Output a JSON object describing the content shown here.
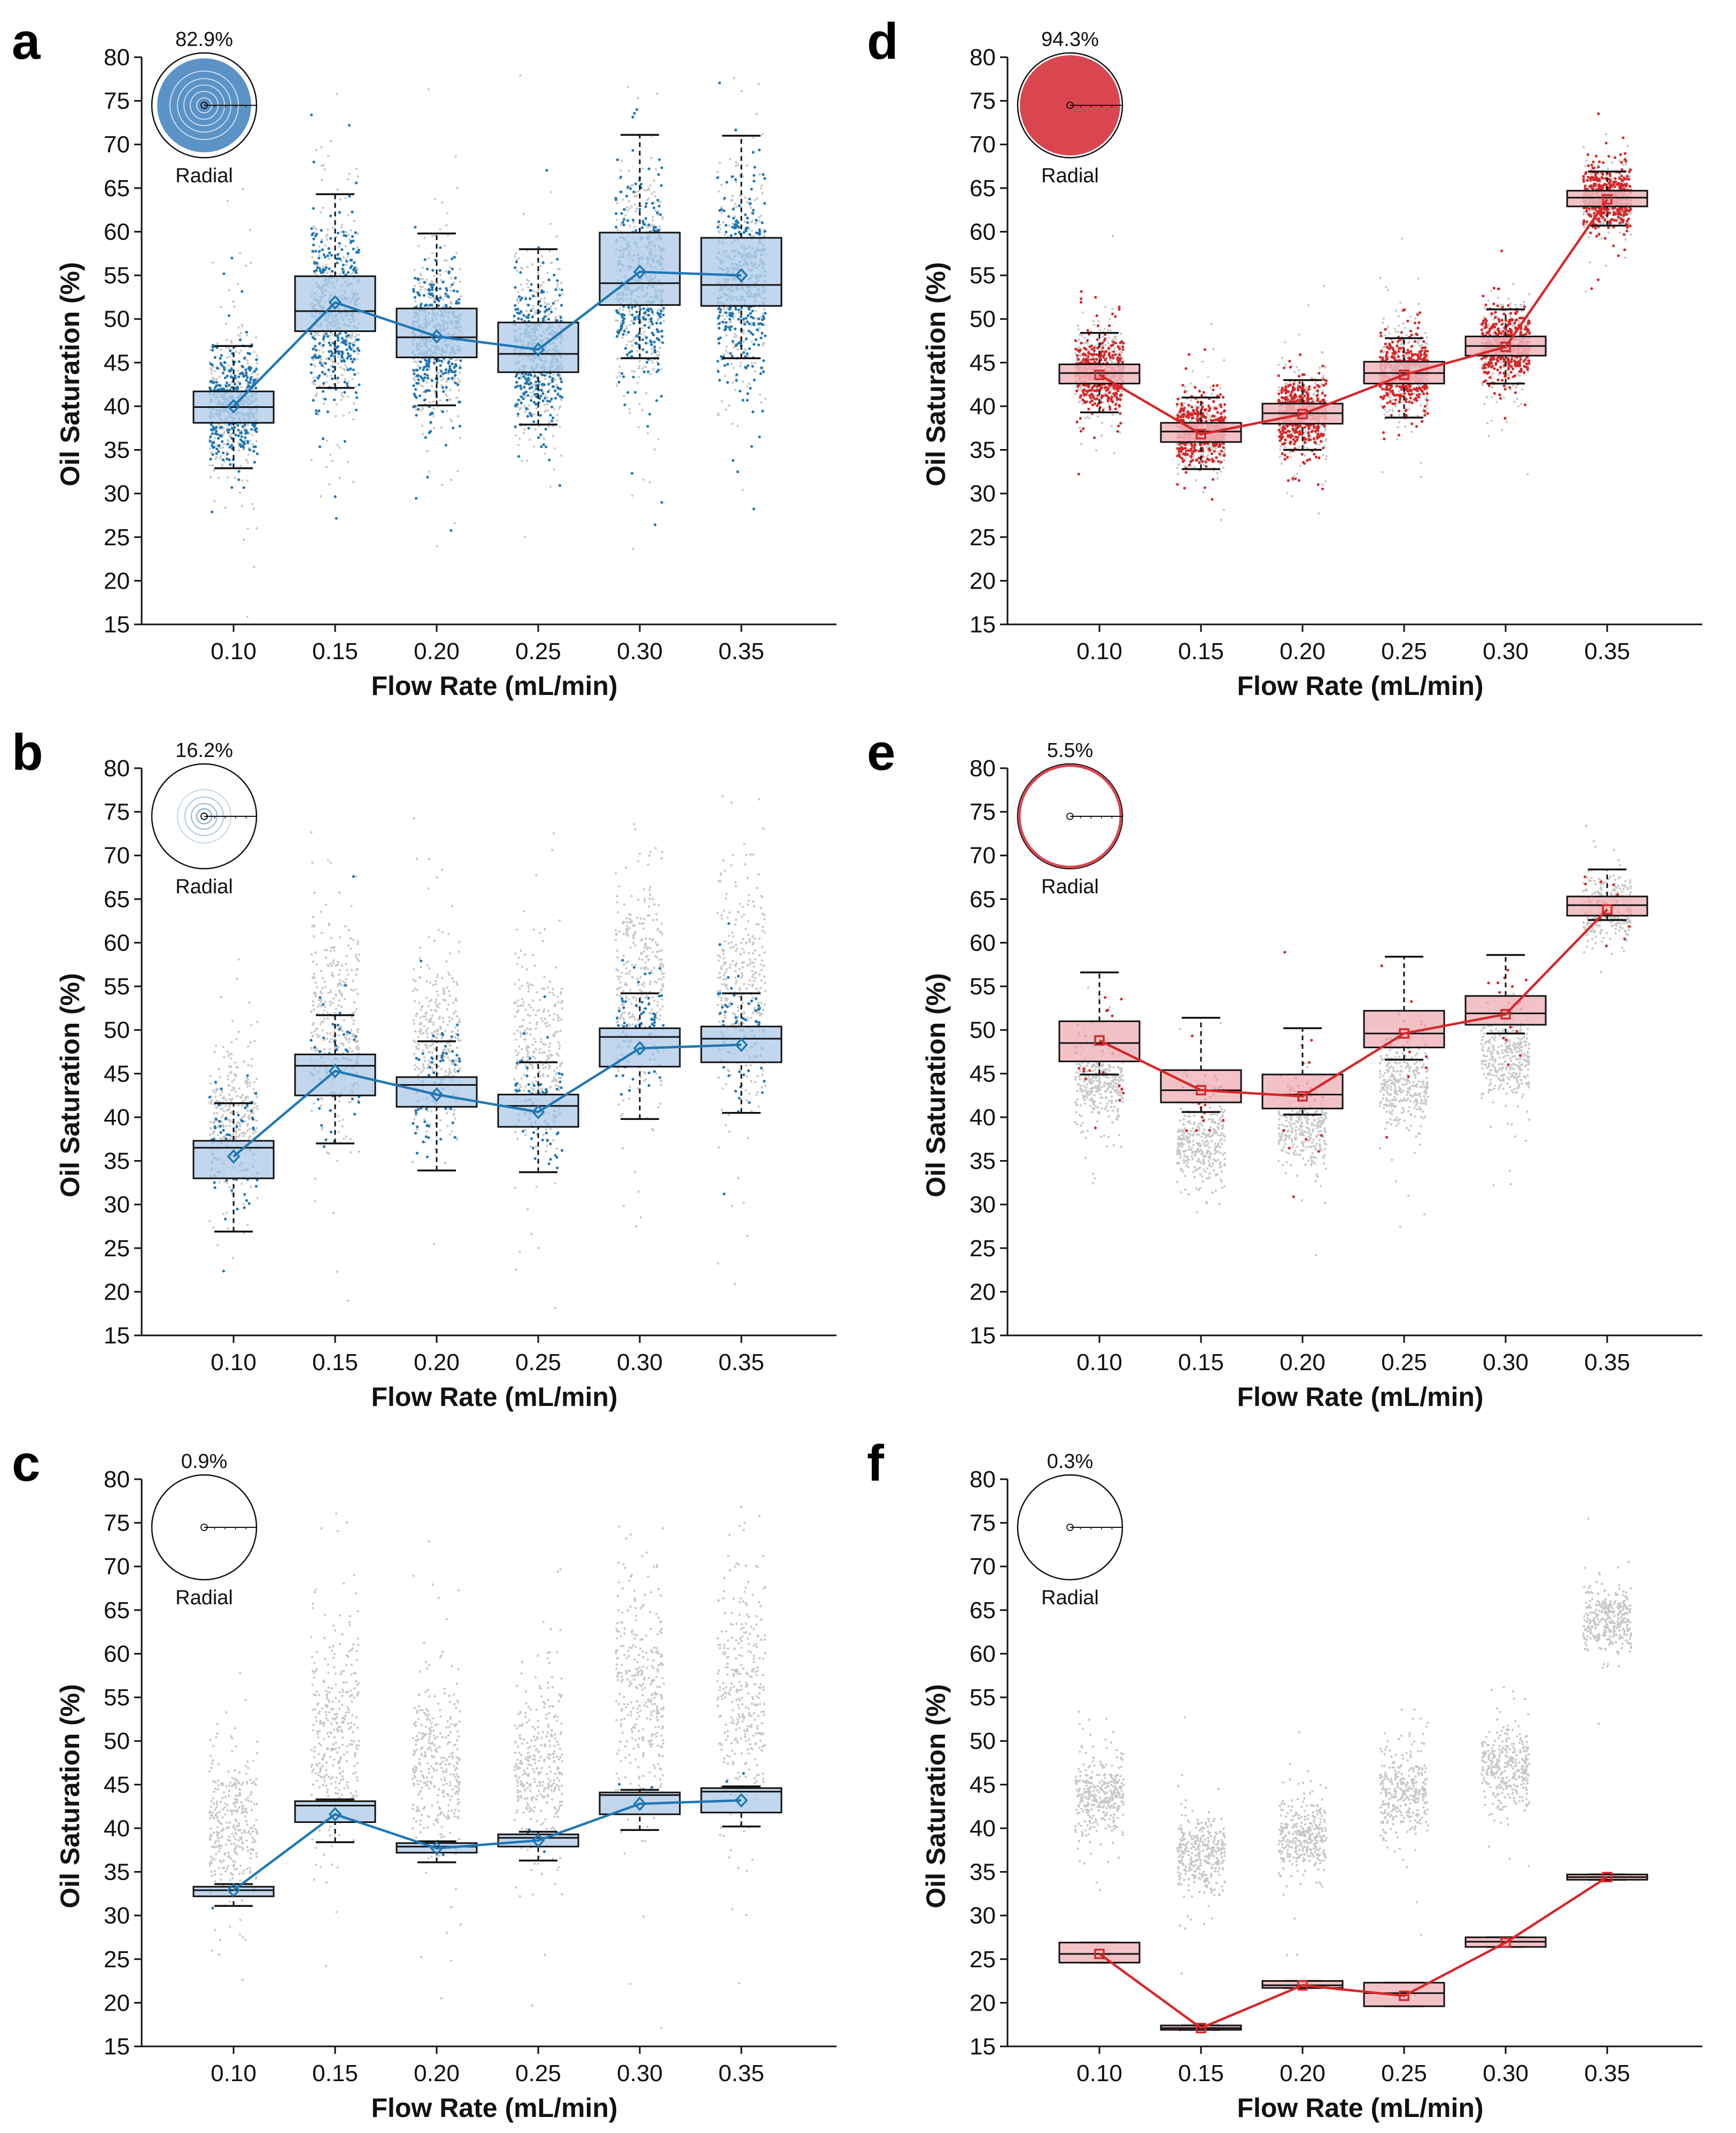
{
  "colors": {
    "blue_fill": "#b7d0ea",
    "blue_line": "#1f77b4",
    "blue_pie": "#5b93c7",
    "red_fill": "#f1b7bd",
    "red_line": "#d62728",
    "red_pie": "#d9464f",
    "gray_points": "#c8c8c8",
    "dark": "#111111"
  },
  "chart_data": [
    {
      "id": "a",
      "panel_label": "a",
      "type": "box",
      "color": "blue",
      "xlabel": "Flow Rate (mL/min)",
      "ylabel": "Oil Saturation (%)",
      "ylim": [
        15,
        80
      ],
      "y_ticks": [
        "15",
        "20",
        "25",
        "30",
        "35",
        "40",
        "45",
        "50",
        "55",
        "60",
        "65",
        "70",
        "75",
        "80"
      ],
      "categories": [
        "0.10",
        "0.15",
        "0.20",
        "0.25",
        "0.30",
        "0.35"
      ],
      "inset": {
        "percent": "82.9%",
        "label": "Radial",
        "fraction": 0.829
      },
      "boxes": [
        {
          "q1": 38.1,
          "median": 39.9,
          "q3": 41.7,
          "wlo": 32.9,
          "whi": 46.9,
          "mean": 40.0,
          "spread": 3.0
        },
        {
          "q1": 48.6,
          "median": 50.9,
          "q3": 54.9,
          "wlo": 42.1,
          "whi": 64.3,
          "mean": 51.9,
          "spread": 4.5
        },
        {
          "q1": 45.6,
          "median": 47.9,
          "q3": 51.2,
          "wlo": 40.1,
          "whi": 59.8,
          "mean": 48.0,
          "spread": 3.5
        },
        {
          "q1": 43.9,
          "median": 46.0,
          "q3": 49.6,
          "wlo": 37.9,
          "whi": 58.0,
          "mean": 46.5,
          "spread": 3.5
        },
        {
          "q1": 51.6,
          "median": 54.1,
          "q3": 59.9,
          "wlo": 45.5,
          "whi": 71.1,
          "mean": 55.4,
          "spread": 5.0
        },
        {
          "q1": 51.5,
          "median": 53.9,
          "q3": 59.3,
          "wlo": 45.5,
          "whi": 71.0,
          "mean": 55.0,
          "spread": 5.0
        }
      ]
    },
    {
      "id": "b",
      "panel_label": "b",
      "type": "box",
      "color": "blue",
      "xlabel": "Flow Rate (mL/min)",
      "ylabel": "Oil Saturation (%)",
      "ylim": [
        15,
        80
      ],
      "y_ticks": [
        "15",
        "20",
        "25",
        "30",
        "35",
        "40",
        "45",
        "50",
        "55",
        "60",
        "65",
        "70",
        "75",
        "80"
      ],
      "categories": [
        "0.10",
        "0.15",
        "0.20",
        "0.25",
        "0.30",
        "0.35"
      ],
      "inset": {
        "percent": "16.2%",
        "label": "Radial",
        "fraction": 0.162
      },
      "boxes": [
        {
          "q1": 33.0,
          "median": 36.5,
          "q3": 37.3,
          "wlo": 26.9,
          "whi": 41.6,
          "mean": 35.5,
          "spread": 3.5
        },
        {
          "q1": 42.5,
          "median": 45.9,
          "q3": 47.2,
          "wlo": 37.0,
          "whi": 51.7,
          "mean": 45.3,
          "spread": 3.5
        },
        {
          "q1": 41.2,
          "median": 43.7,
          "q3": 44.6,
          "wlo": 33.9,
          "whi": 48.7,
          "mean": 42.6,
          "spread": 3.5
        },
        {
          "q1": 38.9,
          "median": 41.3,
          "q3": 42.6,
          "wlo": 33.7,
          "whi": 46.3,
          "mean": 40.6,
          "spread": 3.0
        },
        {
          "q1": 45.8,
          "median": 49.2,
          "q3": 50.2,
          "wlo": 39.8,
          "whi": 54.2,
          "mean": 47.9,
          "spread": 3.5
        },
        {
          "q1": 46.3,
          "median": 49.0,
          "q3": 50.4,
          "wlo": 40.5,
          "whi": 54.2,
          "mean": 48.3,
          "spread": 3.5
        }
      ]
    },
    {
      "id": "c",
      "panel_label": "c",
      "type": "box",
      "color": "blue",
      "xlabel": "Flow Rate (mL/min)",
      "ylabel": "Oil Saturation (%)",
      "ylim": [
        15,
        80
      ],
      "y_ticks": [
        "15",
        "20",
        "25",
        "30",
        "35",
        "40",
        "45",
        "50",
        "55",
        "60",
        "65",
        "70",
        "75",
        "80"
      ],
      "categories": [
        "0.10",
        "0.15",
        "0.20",
        "0.25",
        "0.30",
        "0.35"
      ],
      "inset": {
        "percent": "0.9%",
        "label": "Radial",
        "fraction": 0.009
      },
      "boxes": [
        {
          "q1": 32.2,
          "median": 32.9,
          "q3": 33.3,
          "wlo": 31.1,
          "whi": 33.6,
          "mean": 32.9,
          "spread": 0.5
        },
        {
          "q1": 40.7,
          "median": 42.6,
          "q3": 43.1,
          "wlo": 38.4,
          "whi": 43.3,
          "mean": 41.6,
          "spread": 1.0
        },
        {
          "q1": 37.2,
          "median": 37.9,
          "q3": 38.3,
          "wlo": 36.1,
          "whi": 38.5,
          "mean": 37.7,
          "spread": 0.5
        },
        {
          "q1": 37.9,
          "median": 38.9,
          "q3": 39.3,
          "wlo": 36.3,
          "whi": 39.6,
          "mean": 38.6,
          "spread": 0.6
        },
        {
          "q1": 41.6,
          "median": 43.8,
          "q3": 44.1,
          "wlo": 39.8,
          "whi": 44.4,
          "mean": 42.8,
          "spread": 1.0
        },
        {
          "q1": 41.8,
          "median": 44.2,
          "q3": 44.6,
          "wlo": 40.2,
          "whi": 44.8,
          "mean": 43.2,
          "spread": 1.0
        }
      ]
    },
    {
      "id": "d",
      "panel_label": "d",
      "type": "box",
      "color": "red",
      "xlabel": "Flow Rate (mL/min)",
      "ylabel": "Oil Saturation (%)",
      "ylim": [
        15,
        80
      ],
      "y_ticks": [
        "15",
        "20",
        "25",
        "30",
        "35",
        "40",
        "45",
        "50",
        "55",
        "60",
        "65",
        "70",
        "75",
        "80"
      ],
      "categories": [
        "0.10",
        "0.15",
        "0.20",
        "0.25",
        "0.30",
        "0.35"
      ],
      "inset": {
        "percent": "94.3%",
        "label": "Radial",
        "fraction": 0.943
      },
      "boxes": [
        {
          "q1": 42.6,
          "median": 43.8,
          "q3": 44.8,
          "wlo": 39.3,
          "whi": 48.4,
          "mean": 43.6,
          "spread": 1.8
        },
        {
          "q1": 35.9,
          "median": 37.1,
          "q3": 38.1,
          "wlo": 32.8,
          "whi": 41.0,
          "mean": 36.8,
          "spread": 1.8
        },
        {
          "q1": 38.0,
          "median": 39.2,
          "q3": 40.3,
          "wlo": 35.0,
          "whi": 43.0,
          "mean": 39.1,
          "spread": 1.8
        },
        {
          "q1": 42.6,
          "median": 43.8,
          "q3": 45.1,
          "wlo": 38.7,
          "whi": 47.8,
          "mean": 43.6,
          "spread": 2.0
        },
        {
          "q1": 45.8,
          "median": 46.9,
          "q3": 48.0,
          "wlo": 42.6,
          "whi": 51.1,
          "mean": 46.8,
          "spread": 1.8
        },
        {
          "q1": 62.9,
          "median": 63.9,
          "q3": 64.7,
          "wlo": 60.7,
          "whi": 66.9,
          "mean": 63.7,
          "spread": 1.6
        }
      ]
    },
    {
      "id": "e",
      "panel_label": "e",
      "type": "box",
      "color": "red",
      "xlabel": "Flow Rate (mL/min)",
      "ylabel": "Oil Saturation (%)",
      "ylim": [
        15,
        80
      ],
      "y_ticks": [
        "15",
        "20",
        "25",
        "30",
        "35",
        "40",
        "45",
        "50",
        "55",
        "60",
        "65",
        "70",
        "75",
        "80"
      ],
      "categories": [
        "0.10",
        "0.15",
        "0.20",
        "0.25",
        "0.30",
        "0.35"
      ],
      "inset": {
        "percent": "5.5%",
        "label": "Radial",
        "fraction": 0.055
      },
      "boxes": [
        {
          "q1": 46.4,
          "median": 48.5,
          "q3": 51.0,
          "wlo": 44.9,
          "whi": 56.6,
          "mean": 48.8,
          "spread": 2.8
        },
        {
          "q1": 41.7,
          "median": 43.1,
          "q3": 45.4,
          "wlo": 40.6,
          "whi": 51.4,
          "mean": 43.1,
          "spread": 2.5
        },
        {
          "q1": 41.0,
          "median": 42.6,
          "q3": 44.9,
          "wlo": 40.3,
          "whi": 50.2,
          "mean": 42.4,
          "spread": 2.5
        },
        {
          "q1": 48.0,
          "median": 49.6,
          "q3": 52.2,
          "wlo": 46.6,
          "whi": 58.4,
          "mean": 49.6,
          "spread": 2.5
        },
        {
          "q1": 50.6,
          "median": 51.9,
          "q3": 53.9,
          "wlo": 49.6,
          "whi": 58.6,
          "mean": 51.8,
          "spread": 2.3
        },
        {
          "q1": 63.1,
          "median": 64.3,
          "q3": 65.3,
          "wlo": 62.6,
          "whi": 68.4,
          "mean": 63.8,
          "spread": 1.5
        }
      ]
    },
    {
      "id": "f",
      "panel_label": "f",
      "type": "box",
      "color": "red",
      "xlabel": "Flow Rate (mL/min)",
      "ylabel": "Oil Saturation (%)",
      "ylim": [
        15,
        80
      ],
      "y_ticks": [
        "15",
        "20",
        "25",
        "30",
        "35",
        "40",
        "45",
        "50",
        "55",
        "60",
        "65",
        "70",
        "75",
        "80"
      ],
      "categories": [
        "0.10",
        "0.15",
        "0.20",
        "0.25",
        "0.30",
        "0.35"
      ],
      "inset": {
        "percent": "0.3%",
        "label": "Radial",
        "fraction": 0.003
      },
      "boxes": [
        {
          "q1": 24.6,
          "median": 25.6,
          "q3": 26.9,
          "wlo": 24.6,
          "whi": 26.9,
          "mean": 25.6,
          "spread": 0.3
        },
        {
          "q1": 16.9,
          "median": 17.1,
          "q3": 17.4,
          "wlo": 16.9,
          "whi": 17.4,
          "mean": 17.1,
          "spread": 0.1
        },
        {
          "q1": 21.7,
          "median": 22.0,
          "q3": 22.5,
          "wlo": 21.7,
          "whi": 22.5,
          "mean": 22.0,
          "spread": 0.1
        },
        {
          "q1": 19.6,
          "median": 21.1,
          "q3": 22.3,
          "wlo": 19.6,
          "whi": 22.3,
          "mean": 20.8,
          "spread": 0.3
        },
        {
          "q1": 26.4,
          "median": 27.0,
          "q3": 27.5,
          "wlo": 26.4,
          "whi": 27.5,
          "mean": 26.9,
          "spread": 0.1
        },
        {
          "q1": 34.1,
          "median": 34.4,
          "q3": 34.7,
          "wlo": 34.1,
          "whi": 34.7,
          "mean": 34.4,
          "spread": 0.1
        }
      ]
    }
  ],
  "background_distributions": {
    "blue": [
      {
        "center": 40.0,
        "spread": 4.0
      },
      {
        "center": 51.0,
        "spread": 6.0
      },
      {
        "center": 47.5,
        "spread": 5.0
      },
      {
        "center": 46.5,
        "spread": 5.0
      },
      {
        "center": 55.0,
        "spread": 6.5
      },
      {
        "center": 54.5,
        "spread": 6.5
      }
    ],
    "red": [
      {
        "center": 44.0,
        "spread": 2.2
      },
      {
        "center": 37.0,
        "spread": 2.2
      },
      {
        "center": 39.0,
        "spread": 2.2
      },
      {
        "center": 43.8,
        "spread": 2.5
      },
      {
        "center": 47.0,
        "spread": 2.2
      },
      {
        "center": 63.8,
        "spread": 1.8
      }
    ]
  }
}
